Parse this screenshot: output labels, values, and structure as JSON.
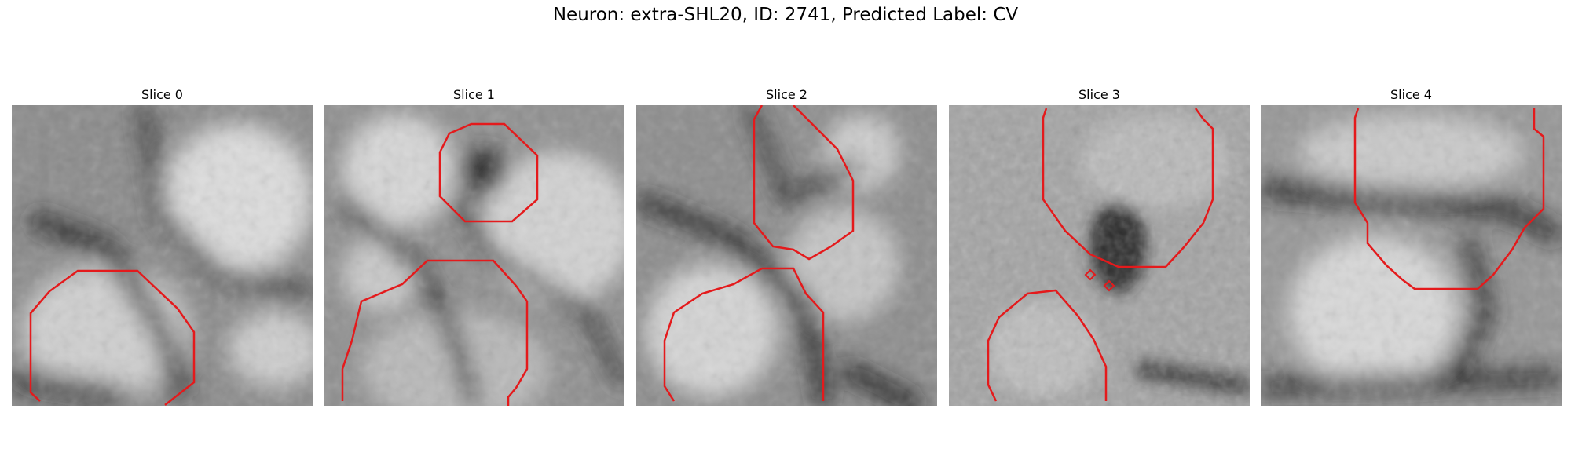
{
  "figure": {
    "title": "Neuron: extra-SHL20, ID: 2741, Predicted Label: CV",
    "contour_color": "#e41a1c"
  },
  "panels": [
    {
      "title": "Slice 0"
    },
    {
      "title": "Slice 1"
    },
    {
      "title": "Slice 2"
    },
    {
      "title": "Slice 3"
    },
    {
      "title": "Slice 4"
    }
  ]
}
